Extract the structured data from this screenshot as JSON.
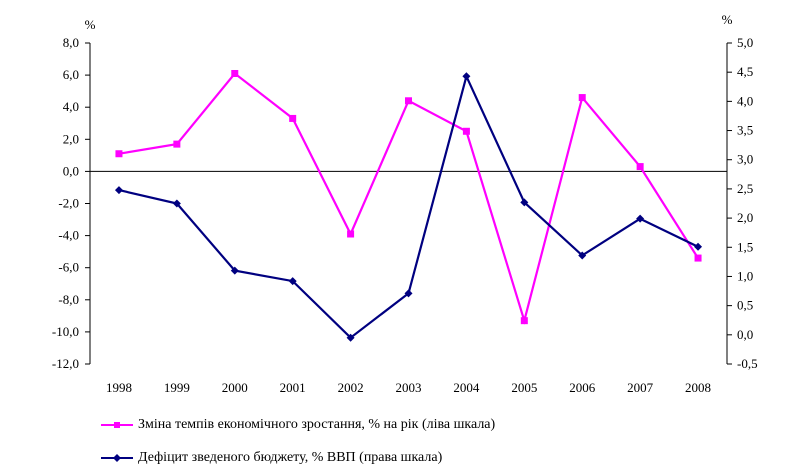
{
  "chart_data": {
    "type": "line",
    "categories": [
      "1998",
      "1999",
      "2000",
      "2001",
      "2002",
      "2003",
      "2004",
      "2005",
      "2006",
      "2007",
      "2008"
    ],
    "left_axis": {
      "unit_label": "%",
      "range": [
        -12,
        8
      ],
      "ticks": [
        8,
        6,
        4,
        2,
        0,
        -2,
        -4,
        -6,
        -8,
        -10,
        -12
      ],
      "tick_labels": [
        "8,0",
        "6,0",
        "4,0",
        "2,0",
        "0,0",
        "-2,0",
        "-4,0",
        "-6,0",
        "-8,0",
        "-10,0",
        "-12,0"
      ]
    },
    "right_axis": {
      "unit_label": "%",
      "range": [
        -0.5,
        5.0
      ],
      "ticks": [
        5.0,
        4.5,
        4.0,
        3.5,
        3.0,
        2.5,
        2.0,
        1.5,
        1.0,
        0.5,
        0.0,
        -0.5
      ],
      "tick_labels": [
        "5,0",
        "4,5",
        "4,0",
        "3,5",
        "3,0",
        "2,5",
        "2,0",
        "1,5",
        "1,0",
        "0,5",
        "0,0",
        "-0,5"
      ]
    },
    "series": [
      {
        "name": "Зміна темпів економічного зростання, % на рік (ліва шкала)",
        "axis": "left",
        "color": "#ff00ff",
        "marker": "square",
        "values": [
          1.1,
          1.7,
          6.1,
          3.3,
          -3.9,
          4.4,
          2.5,
          -9.3,
          4.6,
          0.3,
          -5.4
        ]
      },
      {
        "name": "Дефіцит зведеного бюджету, % ВВП (права шкала)",
        "axis": "right",
        "color": "#000080",
        "marker": "diamond",
        "values": [
          2.48,
          2.25,
          1.1,
          0.92,
          -0.05,
          0.71,
          4.43,
          2.27,
          1.36,
          1.99,
          1.51
        ]
      }
    ],
    "zero_line": true,
    "legend_position": "bottom-left"
  }
}
